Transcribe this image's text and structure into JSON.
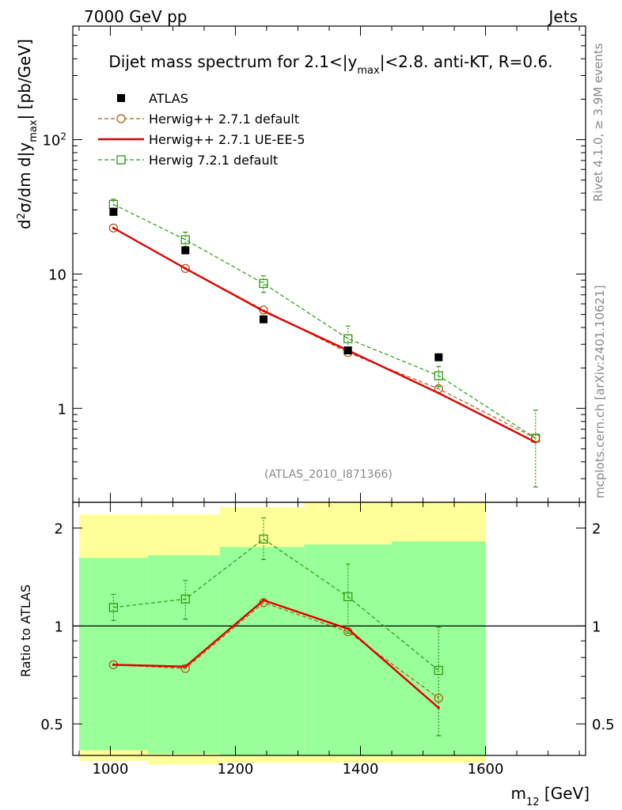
{
  "header": {
    "left": "7000 GeV pp",
    "right": "Jets"
  },
  "side": {
    "rivet": "Rivet 4.1.0, ≥ 3.9M events",
    "mcplots": "mcplots.cern.ch [arXiv:2401.10621]"
  },
  "chart_data": [
    {
      "type": "line",
      "title": "Dijet mass spectrum for 2.1<|y_max|<2.8.  anti-KT, R=0.6.",
      "title_parts": {
        "a": "Dijet mass spectrum for 2.1<|y",
        "sub": "max",
        "b": "|<2.8.  anti-KT, R=0.6."
      },
      "ylabel_parts": {
        "a": "d",
        "sup": "2",
        "b": "σ/dm d|y",
        "sub": "max",
        "c": "| [pb/GeV]"
      },
      "yscale": "log",
      "ylim": [
        0.2,
        700
      ],
      "xlim": [
        940,
        1760
      ],
      "y_ticks": [
        {
          "v": 1,
          "label": "1"
        },
        {
          "v": 10,
          "label": "10"
        },
        {
          "v": 100,
          "label": "10",
          "sup": "2"
        }
      ],
      "watermark": "(ATLAS_2010_I871366)",
      "legend_position": "top-left",
      "series": [
        {
          "name": "ATLAS",
          "key": "atlas",
          "color": "#000000",
          "marker": "filled-square",
          "line": "none",
          "x": [
            1005,
            1120,
            1245,
            1380,
            1525
          ],
          "y": [
            29,
            15,
            4.6,
            2.7,
            2.4
          ]
        },
        {
          "name": "Herwig++ 2.7.1 default",
          "key": "def",
          "color": "#b05a10",
          "marker": "open-circle",
          "line": "dashed",
          "x": [
            1005,
            1120,
            1245,
            1380,
            1525,
            1680
          ],
          "y": [
            22,
            11,
            5.4,
            2.6,
            1.4,
            0.6
          ]
        },
        {
          "name": "Herwig++ 2.7.1 UE-EE-5",
          "key": "ue",
          "color": "#e00000",
          "marker": "none",
          "line": "solid",
          "x": [
            1005,
            1120,
            1245,
            1380,
            1525,
            1680
          ],
          "y": [
            22,
            11,
            5.3,
            2.7,
            1.3,
            0.56
          ]
        },
        {
          "name": "Herwig 7.2.1 default",
          "key": "h7",
          "color": "#2e9a10",
          "marker": "open-square",
          "line": "dashed",
          "x": [
            1005,
            1120,
            1245,
            1380,
            1525,
            1680
          ],
          "y": [
            33,
            18,
            8.5,
            3.3,
            1.75,
            0.6
          ],
          "yerr_lo": [
            29,
            16,
            7.3,
            2.8,
            1.45,
            0.26
          ],
          "yerr_hi": [
            36,
            20.5,
            9.7,
            4.1,
            2.05,
            0.97
          ]
        }
      ]
    },
    {
      "type": "line",
      "ylabel": "Ratio to ATLAS",
      "xlabel": "m_12 [GeV]",
      "xlabel_parts": {
        "a": "m",
        "sub": "12",
        "b": " [GeV]"
      },
      "yscale": "log",
      "ylim": [
        0.4,
        2.4
      ],
      "xlim": [
        940,
        1760
      ],
      "y_ticks": [
        {
          "v": 0.5,
          "label": "0.5"
        },
        {
          "v": 1,
          "label": "1"
        },
        {
          "v": 2,
          "label": "2"
        }
      ],
      "x_ticks": [
        {
          "v": 1000,
          "label": "1000"
        },
        {
          "v": 1200,
          "label": "1200"
        },
        {
          "v": 1400,
          "label": "1400"
        },
        {
          "v": 1600,
          "label": "1600"
        }
      ],
      "bands": [
        {
          "x0": 950,
          "x1": 1060,
          "yellow": [
            0.385,
            2.2
          ],
          "green": [
            0.415,
            1.62
          ]
        },
        {
          "x0": 1060,
          "x1": 1175,
          "yellow": [
            0.375,
            2.2
          ],
          "green": [
            0.405,
            1.65
          ]
        },
        {
          "x0": 1175,
          "x1": 1310,
          "yellow": [
            0.38,
            2.32
          ],
          "green": [
            0.4,
            1.75
          ]
        },
        {
          "x0": 1310,
          "x1": 1450,
          "yellow": [
            0.38,
            2.4
          ],
          "green": [
            0.4,
            1.78
          ]
        },
        {
          "x0": 1450,
          "x1": 1600,
          "yellow": [
            0.38,
            2.4
          ],
          "green": [
            0.4,
            1.82
          ]
        }
      ],
      "series": [
        {
          "name": "Herwig++ 2.7.1 default",
          "key": "def",
          "color": "#b05a10",
          "marker": "open-circle",
          "line": "dashed",
          "x": [
            1005,
            1120,
            1245,
            1380,
            1525
          ],
          "y": [
            0.76,
            0.74,
            1.18,
            0.96,
            0.6
          ]
        },
        {
          "name": "Herwig++ 2.7.1 UE-EE-5",
          "key": "ue",
          "color": "#e00000",
          "marker": "none",
          "line": "solid",
          "x": [
            1005,
            1120,
            1245,
            1380,
            1525
          ],
          "y": [
            0.76,
            0.75,
            1.2,
            0.98,
            0.56
          ]
        },
        {
          "name": "Herwig 7.2.1 default",
          "key": "h7",
          "color": "#2e9a10",
          "marker": "open-square",
          "line": "dashed",
          "x": [
            1005,
            1120,
            1245,
            1380,
            1525
          ],
          "y": [
            1.14,
            1.21,
            1.85,
            1.23,
            0.73
          ],
          "yerr_lo": [
            1.04,
            1.05,
            1.6,
            0.95,
            0.46
          ],
          "yerr_hi": [
            1.25,
            1.38,
            2.15,
            1.55,
            0.99
          ]
        }
      ]
    }
  ]
}
